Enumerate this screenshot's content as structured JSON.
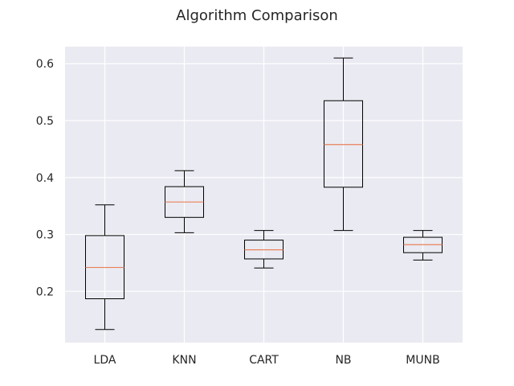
{
  "chart_data": {
    "type": "box",
    "title": "Algorithm Comparison",
    "xlabel": "",
    "ylabel": "",
    "categories": [
      "LDA",
      "KNN",
      "CART",
      "NB",
      "MUNB"
    ],
    "ylim": [
      0.11,
      0.63
    ],
    "yticks": [
      0.2,
      0.3,
      0.4,
      0.5,
      0.6
    ],
    "ytick_labels": [
      "0.2",
      "0.3",
      "0.4",
      "0.5",
      "0.6"
    ],
    "grid": true,
    "boxes": [
      {
        "label": "LDA",
        "min": 0.133,
        "q1": 0.187,
        "median": 0.242,
        "q3": 0.298,
        "max": 0.352
      },
      {
        "label": "KNN",
        "min": 0.303,
        "q1": 0.33,
        "median": 0.357,
        "q3": 0.384,
        "max": 0.412
      },
      {
        "label": "CART",
        "min": 0.241,
        "q1": 0.257,
        "median": 0.273,
        "q3": 0.29,
        "max": 0.307
      },
      {
        "label": "NB",
        "min": 0.307,
        "q1": 0.383,
        "median": 0.458,
        "q3": 0.535,
        "max": 0.61
      },
      {
        "label": "MUNB",
        "min": 0.255,
        "q1": 0.268,
        "median": 0.282,
        "q3": 0.295,
        "max": 0.307
      }
    ],
    "colors": {
      "background": "#eaeaf2",
      "grid": "#ffffff",
      "box": "#000000",
      "median": "#e8825a",
      "text": "#262626"
    }
  }
}
